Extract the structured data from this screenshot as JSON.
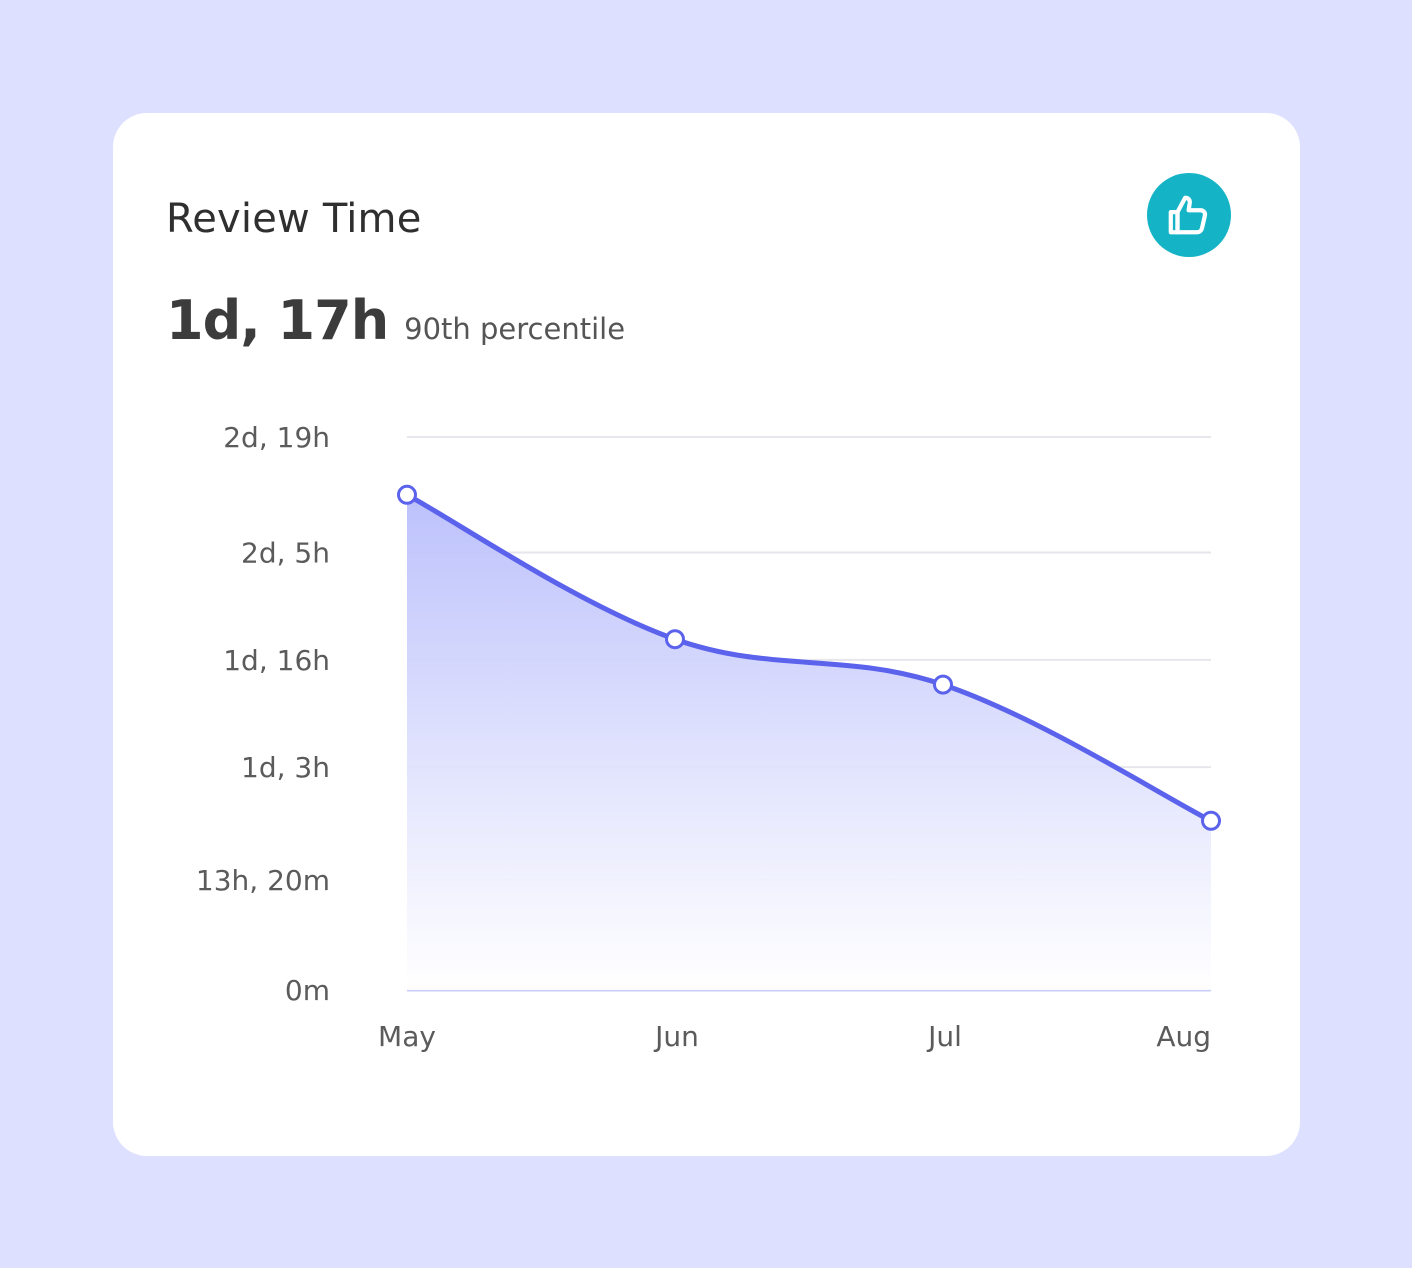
{
  "card": {
    "title": "Review Time",
    "metric_value": "1d, 17h",
    "metric_caption": "90th percentile",
    "badge_icon": "thumbs-up-icon",
    "badge_color": "#14b4c6"
  },
  "colors": {
    "page_background": "#dde0fe",
    "line": "#5b62ec",
    "area_top": "#b9befb",
    "grid": "#e6e6ec",
    "baseline": "#c9ccf5"
  },
  "chart_data": {
    "type": "area",
    "x": [
      "May",
      "Jun",
      "Jul",
      "Aug"
    ],
    "series": [
      {
        "values_hours": [
          60,
          42.5,
          37,
          20.5
        ]
      }
    ],
    "ylim_hours": [
      0,
      67
    ],
    "y_ticks": [
      {
        "label": "0m",
        "hours": 0
      },
      {
        "label": "13h, 20m",
        "hours": 13.333
      },
      {
        "label": "1d, 3h",
        "hours": 27
      },
      {
        "label": "1d, 16h",
        "hours": 40
      },
      {
        "label": "2d, 5h",
        "hours": 53
      },
      {
        "label": "2d, 19h",
        "hours": 67
      }
    ],
    "grid": true,
    "legend": "none"
  }
}
